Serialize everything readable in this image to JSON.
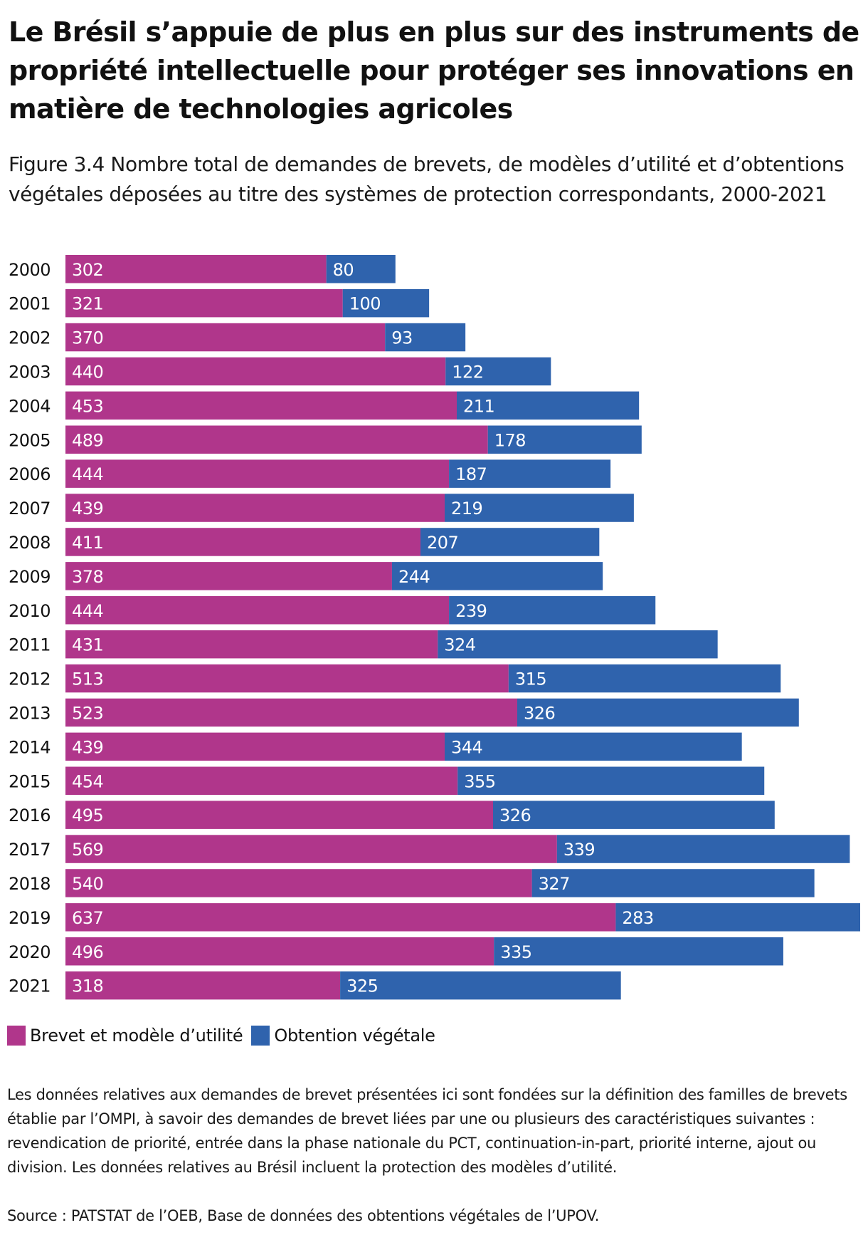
{
  "header": {
    "title": "Le Brésil s’appuie de plus en plus sur des instruments de propriété intellectuelle pour protéger ses innovations en matière de technologies agricoles",
    "subtitle": "Figure 3.4 Nombre total de demandes de brevets, de modèles d’utilité et d’obtentions végétales déposées au titre des systèmes de protection correspondants, 2000-2021"
  },
  "colors": {
    "brevet": "#b0368b",
    "obtention": "#2f63ad"
  },
  "legend": {
    "items": [
      {
        "label": "Brevet et modèle d’utilité",
        "color_key": "brevet"
      },
      {
        "label": "Obtention végétale",
        "color_key": "obtention"
      }
    ]
  },
  "footer": {
    "note": "Les données relatives aux demandes de brevet présentées ici sont fondées sur la définition des familles de brevets établie par l’OMPI, à savoir des demandes de brevet liées par une ou plusieurs des caractéristiques suivantes : revendication de priorité, entrée dans la phase nationale du PCT, continuation-in-part, priorité interne, ajout ou division. Les données relatives au Brésil incluent la protection des modèles d’utilité.",
    "source": "Source : PATSTAT de l’OEB, Base de données des obtentions végétales de l’UPOV."
  },
  "chart_data": {
    "type": "bar",
    "orientation": "horizontal",
    "stacked": true,
    "title": "Figure 3.4 Nombre total de demandes de brevets, de modèles d’utilité et d’obtentions végétales déposées au titre des systèmes de protection correspondants, 2000-2021",
    "xlabel": "",
    "ylabel": "",
    "grid": false,
    "legend_position": "bottom-left",
    "xlim": [
      0,
      920
    ],
    "categories": [
      "2000",
      "2001",
      "2002",
      "2003",
      "2004",
      "2005",
      "2006",
      "2007",
      "2008",
      "2009",
      "2010",
      "2011",
      "2012",
      "2013",
      "2014",
      "2015",
      "2016",
      "2017",
      "2018",
      "2019",
      "2020",
      "2021"
    ],
    "series": [
      {
        "name": "Brevet et modèle d’utilité",
        "color_key": "brevet",
        "values": [
          302,
          321,
          370,
          440,
          453,
          489,
          444,
          439,
          411,
          378,
          444,
          431,
          513,
          523,
          439,
          454,
          495,
          569,
          540,
          637,
          496,
          318
        ]
      },
      {
        "name": "Obtention végétale",
        "color_key": "obtention",
        "values": [
          80,
          100,
          93,
          122,
          211,
          178,
          187,
          219,
          207,
          244,
          239,
          324,
          315,
          326,
          344,
          355,
          326,
          339,
          327,
          283,
          335,
          325
        ]
      }
    ]
  }
}
